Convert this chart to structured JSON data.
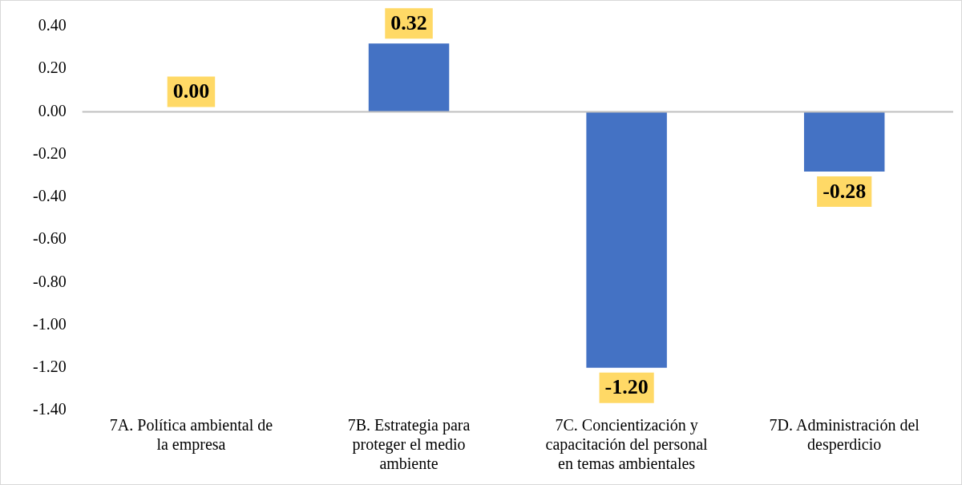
{
  "chart_data": {
    "type": "bar",
    "categories": [
      "7A. Política ambiental de la empresa",
      "7B. Estrategia para proteger el medio ambiente",
      "7C. Concientización y capacitación del personal en temas ambientales",
      "7D. Administración del desperdicio"
    ],
    "values": [
      0,
      0.32,
      -1.2,
      -0.28
    ],
    "value_labels": [
      "0.00",
      "0.32",
      "-1.20",
      "-0.28"
    ],
    "color": "#4472c4",
    "ylim": [
      -1.4,
      0.4
    ],
    "yticks": [
      {
        "value": 0.4,
        "label": "0.40"
      },
      {
        "value": 0.2,
        "label": "0.20"
      },
      {
        "value": 0,
        "label": "0.00"
      },
      {
        "value": -0.2,
        "label": "-0.20"
      },
      {
        "value": -0.4,
        "label": "-0.40"
      },
      {
        "value": -0.6,
        "label": "-0.60"
      },
      {
        "value": -0.8,
        "label": "-0.80"
      },
      {
        "value": -1,
        "label": "-1.00"
      },
      {
        "value": -1.2,
        "label": "-1.20"
      },
      {
        "value": -1.4,
        "label": "-1.40"
      }
    ],
    "ref_lines": [
      {
        "axis": "y",
        "value": 0,
        "color": "#bfbfbf",
        "line_style": "solid"
      }
    ],
    "grid": false,
    "legend": false
  }
}
